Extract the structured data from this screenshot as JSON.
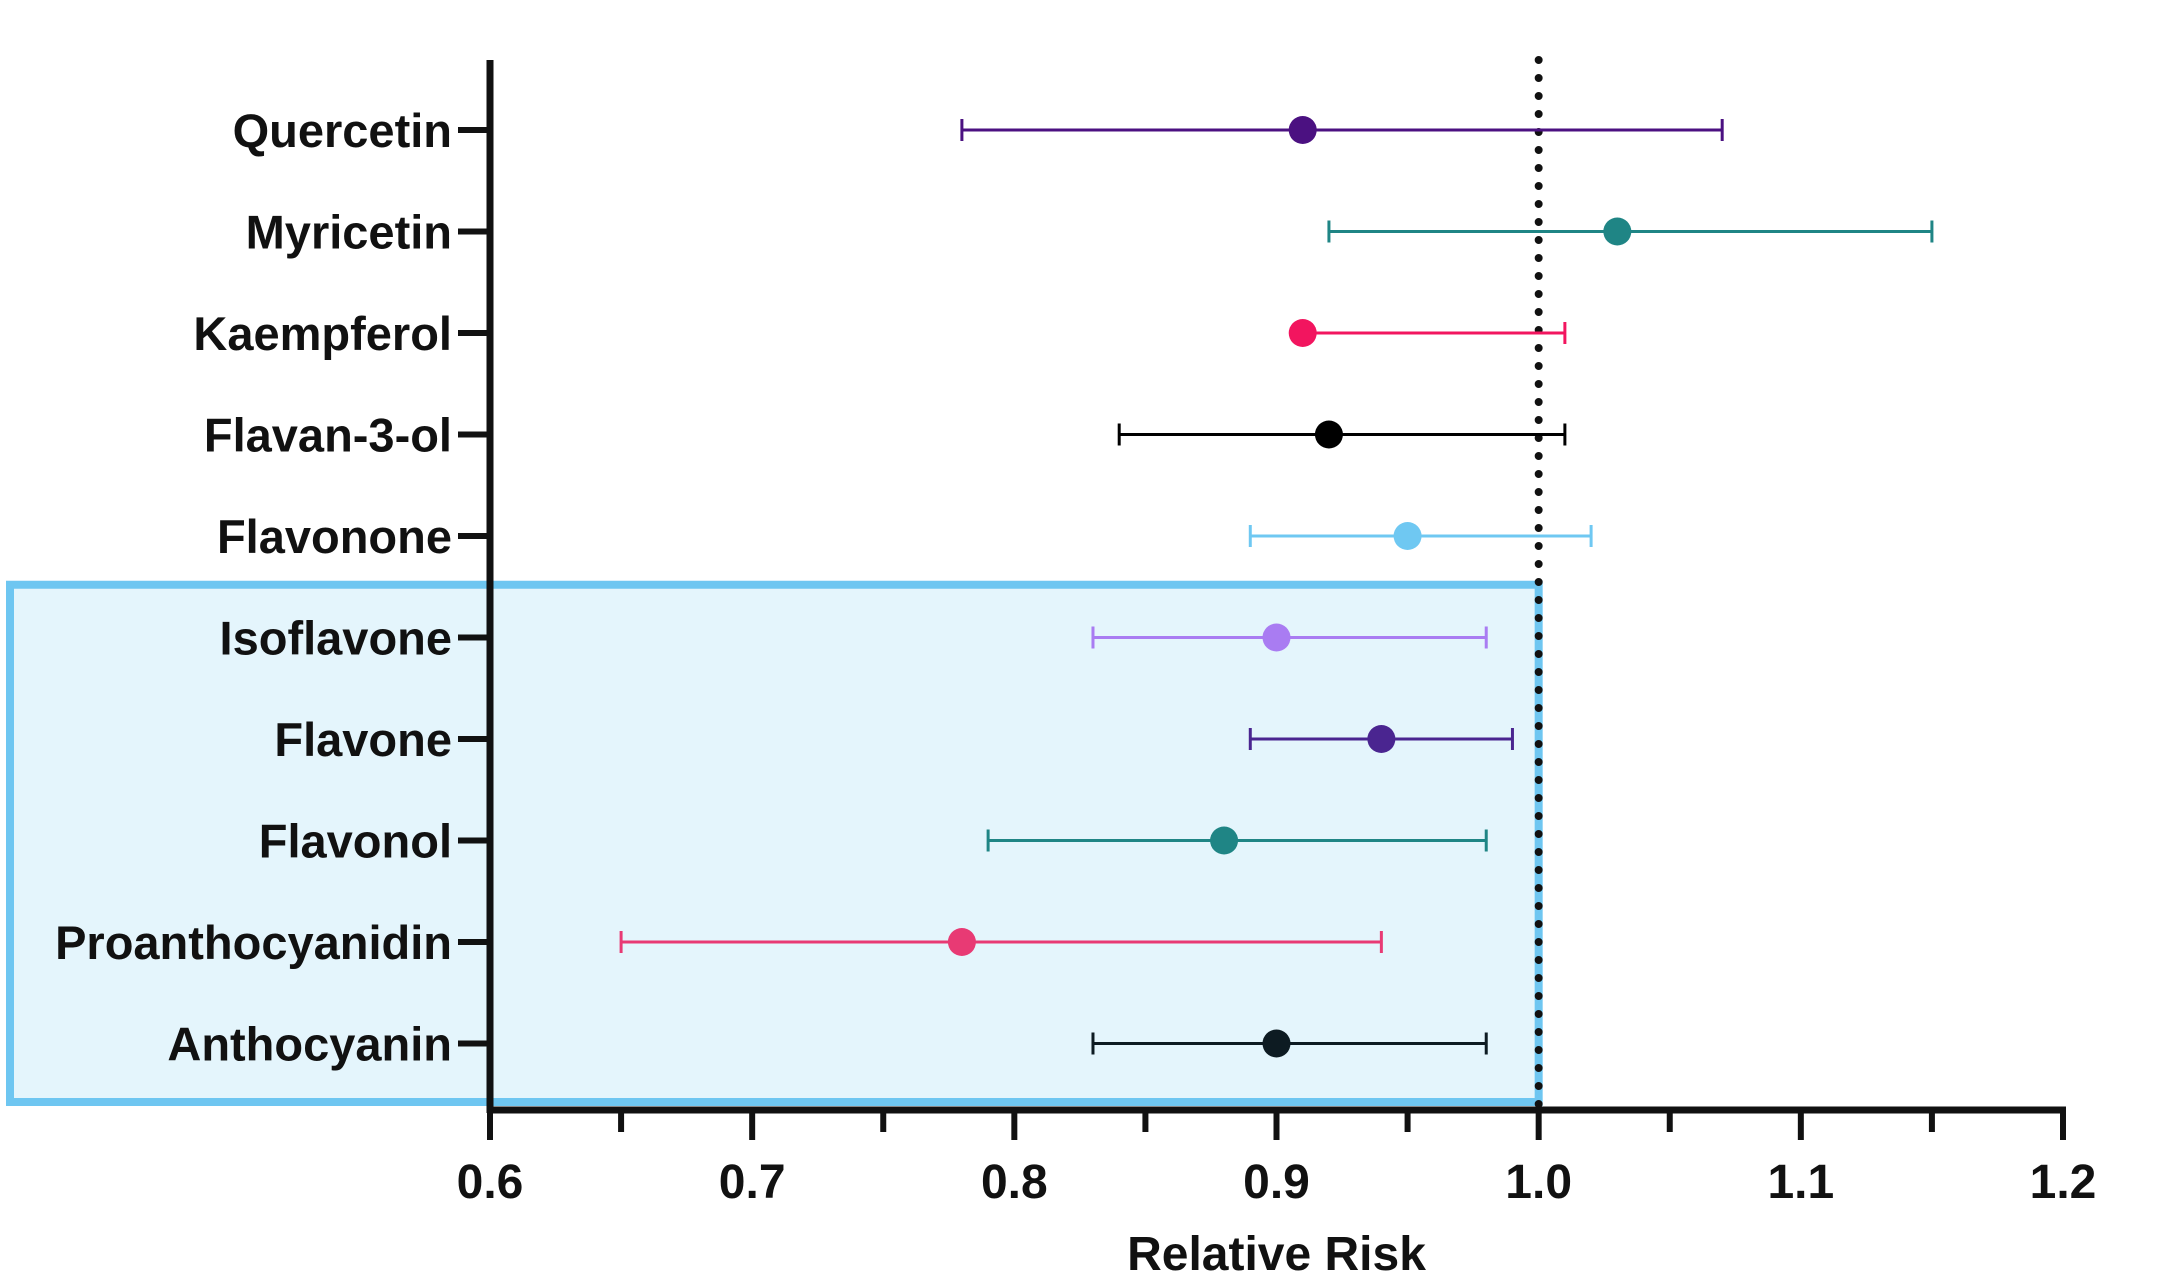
{
  "chart_data": {
    "type": "forest",
    "xlabel": "Relative Risk",
    "xlim": [
      0.6,
      1.2
    ],
    "x_ticks": [
      "0.6",
      "0.7",
      "0.8",
      "0.9",
      "1.0",
      "1.1",
      "1.2"
    ],
    "x_minor_tick_step": 0.05,
    "reference_line": {
      "x": 1.0,
      "style": "dotted",
      "color": "#111111"
    },
    "highlight_box": {
      "from_category": "Isoflavone",
      "to_category": "Anthocyanin",
      "x_max": 1.0,
      "fill": "#e4f5fc",
      "border": "#6ec6f1"
    },
    "rows": [
      {
        "name": "Quercetin",
        "rr": 0.91,
        "lower": 0.78,
        "upper": 1.07,
        "color": "#4b1181"
      },
      {
        "name": "Myricetin",
        "rr": 1.03,
        "lower": 0.92,
        "upper": 1.15,
        "color": "#1f8585"
      },
      {
        "name": "Kaempferol",
        "rr": 0.91,
        "lower": 0.91,
        "upper": 1.01,
        "color": "#f2155f"
      },
      {
        "name": "Flavan-3-ol",
        "rr": 0.92,
        "lower": 0.84,
        "upper": 1.01,
        "color": "#000000"
      },
      {
        "name": "Flavonone",
        "rr": 0.95,
        "lower": 0.89,
        "upper": 1.02,
        "color": "#6fc8f2"
      },
      {
        "name": "Isoflavone",
        "rr": 0.9,
        "lower": 0.83,
        "upper": 0.98,
        "color": "#a97cf2"
      },
      {
        "name": "Flavone",
        "rr": 0.94,
        "lower": 0.89,
        "upper": 0.99,
        "color": "#4a2590"
      },
      {
        "name": "Flavonol",
        "rr": 0.88,
        "lower": 0.79,
        "upper": 0.98,
        "color": "#1f8585"
      },
      {
        "name": "Proanthocyanidin",
        "rr": 0.78,
        "lower": 0.65,
        "upper": 0.94,
        "color": "#e83a74"
      },
      {
        "name": "Anthocyanin",
        "rr": 0.9,
        "lower": 0.83,
        "upper": 0.98,
        "color": "#0d1b22"
      }
    ]
  }
}
